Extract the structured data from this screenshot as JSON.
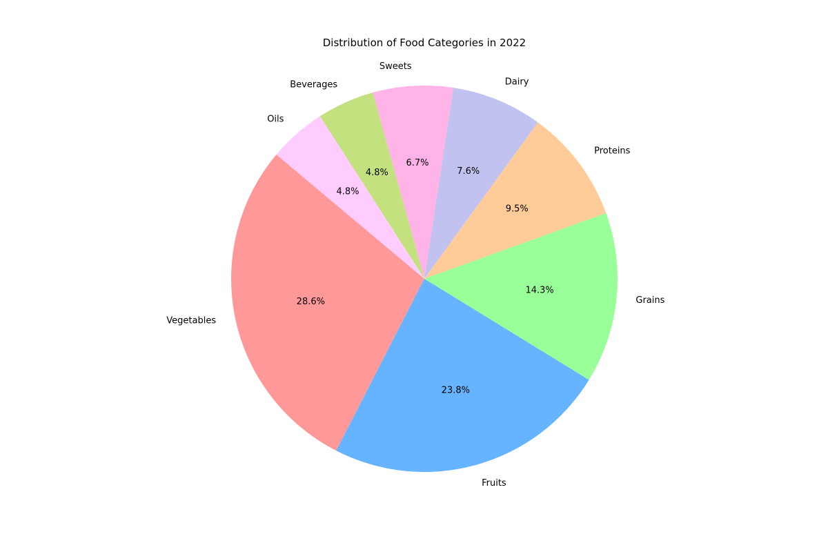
{
  "chart_data": {
    "type": "pie",
    "title": "Distribution of Food Categories in 2022",
    "categories": [
      "Vegetables",
      "Fruits",
      "Grains",
      "Proteins",
      "Dairy",
      "Sweets",
      "Beverages",
      "Oils"
    ],
    "values": [
      28.6,
      23.8,
      14.3,
      9.5,
      7.6,
      6.7,
      4.8,
      4.8
    ],
    "percent_labels": [
      "28.6%",
      "23.8%",
      "14.3%",
      "9.5%",
      "7.6%",
      "6.7%",
      "4.8%",
      "4.8%"
    ],
    "colors": [
      "#ff9999",
      "#66b3ff",
      "#99ff99",
      "#ffcc99",
      "#c2c2f0",
      "#ffb3e6",
      "#c4e17f",
      "#ffccff"
    ],
    "start_angle_deg": 140,
    "direction": "counterclockwise",
    "legend": "none"
  }
}
